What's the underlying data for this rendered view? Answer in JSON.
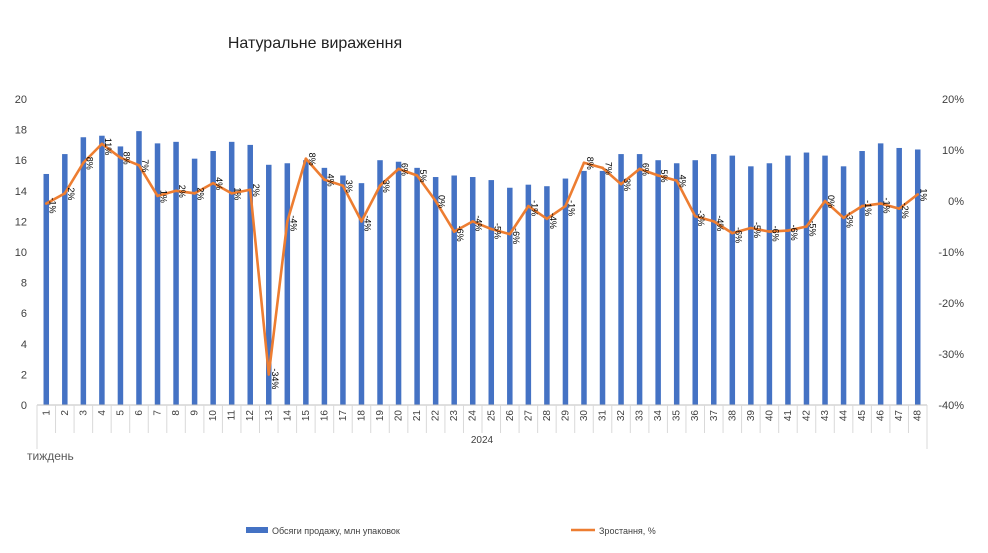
{
  "chart_data": {
    "type": "bar",
    "title": "Натуральне вираження",
    "x_group_label": "2024",
    "x_axis_corner_label": "тиждень",
    "categories": [
      "1",
      "2",
      "3",
      "4",
      "5",
      "6",
      "7",
      "8",
      "9",
      "10",
      "11",
      "12",
      "13",
      "14",
      "15",
      "16",
      "17",
      "18",
      "19",
      "20",
      "21",
      "22",
      "23",
      "24",
      "25",
      "26",
      "27",
      "28",
      "29",
      "30",
      "31",
      "32",
      "33",
      "34",
      "35",
      "36",
      "37",
      "38",
      "39",
      "40",
      "41",
      "42",
      "43",
      "44",
      "45",
      "46",
      "47",
      "48"
    ],
    "series": [
      {
        "name": "Обсяги продажу, млн упаковок",
        "type": "bar",
        "axis": "left",
        "color": "#4472C4",
        "values": [
          15.1,
          16.4,
          17.5,
          17.6,
          16.9,
          17.9,
          17.1,
          17.2,
          16.1,
          16.6,
          17.2,
          17.0,
          15.7,
          15.8,
          16.0,
          15.5,
          15.0,
          14.5,
          16.0,
          15.9,
          15.5,
          14.9,
          15.0,
          14.9,
          14.7,
          14.2,
          14.4,
          14.3,
          14.8,
          15.3,
          15.3,
          16.4,
          16.4,
          16.0,
          15.8,
          16.0,
          16.4,
          16.3,
          15.6,
          15.8,
          16.3,
          16.5,
          16.3,
          15.6,
          16.6,
          17.1,
          16.8,
          16.7
        ]
      },
      {
        "name": "Зростання, %",
        "type": "line",
        "axis": "right",
        "color": "#ED7D31",
        "values": [
          -0.5,
          1.5,
          7.5,
          11.2,
          8.5,
          7.0,
          1.0,
          2.0,
          1.5,
          3.5,
          1.5,
          2.2,
          -34.0,
          -4.0,
          8.3,
          4.2,
          3.0,
          -4.0,
          3.0,
          6.3,
          5.0,
          0.0,
          -6.0,
          -4.0,
          -5.5,
          -6.5,
          -1.0,
          -3.5,
          -1.0,
          7.5,
          6.5,
          3.3,
          6.3,
          5.0,
          4.0,
          -3.0,
          -4.0,
          -6.3,
          -5.3,
          -6.0,
          -5.8,
          -5.0,
          0.0,
          -3.3,
          -1.0,
          -0.5,
          -1.5,
          1.3
        ]
      }
    ],
    "data_labels": [
      "-1%",
      "2%",
      "8%",
      "11%",
      "8%",
      "7%",
      "1%",
      "2%",
      "2%",
      "4%",
      "1%",
      "2%",
      "-34%",
      "-4%",
      "8%",
      "4%",
      "3%",
      "-4%",
      "3%",
      "6%",
      "5%",
      "0%",
      "-6%",
      "-4%",
      "-5%",
      "-6%",
      "-1%",
      "-4%",
      "-1%",
      "8%",
      "7%",
      "3%",
      "6%",
      "5%",
      "4%",
      "-3%",
      "-4%",
      "-6%",
      "-5%",
      "-6%",
      "-6%",
      "-5%",
      "0%",
      "-3%",
      "-1%",
      "-1%",
      "-2%",
      "1%"
    ],
    "y_left": {
      "ticks": [
        "0",
        "2",
        "4",
        "6",
        "8",
        "10",
        "12",
        "14",
        "16",
        "18",
        "20"
      ],
      "min": 0,
      "max": 20
    },
    "y_right": {
      "ticks": [
        "-40%",
        "-30%",
        "-20%",
        "-10%",
        "0%",
        "10%",
        "20%"
      ],
      "min": -40,
      "max": 20
    },
    "grid": false,
    "legend_position": "bottom"
  }
}
